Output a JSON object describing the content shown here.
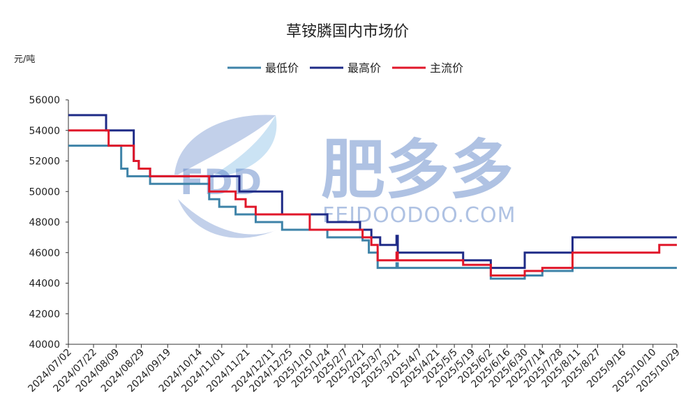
{
  "chart_data": {
    "type": "line",
    "title": "草铵膦国内市场价",
    "unit_label": "元/吨",
    "ylim": [
      40000,
      56000
    ],
    "yticks": [
      40000,
      42000,
      44000,
      46000,
      48000,
      50000,
      52000,
      54000,
      56000
    ],
    "xlim": [
      "2024-07-02",
      "2025-10-29"
    ],
    "xtick_labels": [
      "2024/07/02",
      "2024/07/22",
      "2024/08/09",
      "2024/08/29",
      "2024/09/19",
      "2024/10/14",
      "2024/11/01",
      "2024/11/21",
      "2024/12/11",
      "2024/12/25",
      "2025/1/10",
      "2025/1/24",
      "2025/2/7",
      "2025/2/21",
      "2025/3/7",
      "2025/3/21",
      "2025/4/7",
      "2025/4/21",
      "2025/5/5",
      "2025/5/19",
      "2025/6/2",
      "2025/6/16",
      "2025/6/30",
      "2025/7/14",
      "2025/7/28",
      "2025/8/11",
      "2025/8/27",
      "2025/9/16",
      "2025/10/10",
      "2025/10/29"
    ],
    "xtick_dates": [
      "2024-07-02",
      "2024-07-22",
      "2024-08-09",
      "2024-08-29",
      "2024-09-19",
      "2024-10-14",
      "2024-11-01",
      "2024-11-21",
      "2024-12-11",
      "2024-12-25",
      "2025-01-10",
      "2025-01-24",
      "2025-02-07",
      "2025-02-21",
      "2025-03-07",
      "2025-03-21",
      "2025-04-07",
      "2025-04-21",
      "2025-05-05",
      "2025-05-19",
      "2025-06-02",
      "2025-06-16",
      "2025-06-30",
      "2025-07-14",
      "2025-07-28",
      "2025-08-11",
      "2025-08-27",
      "2025-09-16",
      "2025-10-10",
      "2025-10-29"
    ],
    "legend_position": "top-center",
    "grid": false,
    "series": [
      {
        "name": "最低价",
        "color": "#3e83a8",
        "points": [
          [
            "2024-07-02",
            53000
          ],
          [
            "2024-08-03",
            53000
          ],
          [
            "2024-08-03",
            53000
          ],
          [
            "2024-08-13",
            53000
          ],
          [
            "2024-08-13",
            51500
          ],
          [
            "2024-08-18",
            51500
          ],
          [
            "2024-08-18",
            51000
          ],
          [
            "2024-09-05",
            51000
          ],
          [
            "2024-09-05",
            50500
          ],
          [
            "2024-10-22",
            50500
          ],
          [
            "2024-10-22",
            49500
          ],
          [
            "2024-10-30",
            49500
          ],
          [
            "2024-10-30",
            49000
          ],
          [
            "2024-11-12",
            49000
          ],
          [
            "2024-11-12",
            48500
          ],
          [
            "2024-11-28",
            48500
          ],
          [
            "2024-11-28",
            48000
          ],
          [
            "2024-12-19",
            48000
          ],
          [
            "2024-12-19",
            47500
          ],
          [
            "2025-01-24",
            47500
          ],
          [
            "2025-01-24",
            47000
          ],
          [
            "2025-02-21",
            47000
          ],
          [
            "2025-02-21",
            46800
          ],
          [
            "2025-02-26",
            46800
          ],
          [
            "2025-02-26",
            46000
          ],
          [
            "2025-03-05",
            46000
          ],
          [
            "2025-03-05",
            45000
          ],
          [
            "2025-03-20",
            45000
          ],
          [
            "2025-03-20",
            45300
          ],
          [
            "2025-03-21",
            45300
          ],
          [
            "2025-03-21",
            45000
          ],
          [
            "2025-06-03",
            45000
          ],
          [
            "2025-06-03",
            44300
          ],
          [
            "2025-06-30",
            44300
          ],
          [
            "2025-06-30",
            44500
          ],
          [
            "2025-07-14",
            44500
          ],
          [
            "2025-07-14",
            44800
          ],
          [
            "2025-08-07",
            44800
          ],
          [
            "2025-08-07",
            45000
          ],
          [
            "2025-10-29",
            45000
          ]
        ]
      },
      {
        "name": "最高价",
        "color": "#1f2b87",
        "points": [
          [
            "2024-07-02",
            55000
          ],
          [
            "2024-08-01",
            55000
          ],
          [
            "2024-08-01",
            54000
          ],
          [
            "2024-08-23",
            54000
          ],
          [
            "2024-08-23",
            52000
          ],
          [
            "2024-08-27",
            52000
          ],
          [
            "2024-08-27",
            51500
          ],
          [
            "2024-09-05",
            51500
          ],
          [
            "2024-09-05",
            51000
          ],
          [
            "2024-11-15",
            51000
          ],
          [
            "2024-11-15",
            50000
          ],
          [
            "2024-12-19",
            50000
          ],
          [
            "2024-12-19",
            48500
          ],
          [
            "2025-01-24",
            48500
          ],
          [
            "2025-01-24",
            48000
          ],
          [
            "2025-02-19",
            48000
          ],
          [
            "2025-02-19",
            47500
          ],
          [
            "2025-02-28",
            47500
          ],
          [
            "2025-02-28",
            47000
          ],
          [
            "2025-03-07",
            47000
          ],
          [
            "2025-03-07",
            46500
          ],
          [
            "2025-03-20",
            46500
          ],
          [
            "2025-03-20",
            47100
          ],
          [
            "2025-03-21",
            47100
          ],
          [
            "2025-03-21",
            46000
          ],
          [
            "2025-05-12",
            46000
          ],
          [
            "2025-05-12",
            45500
          ],
          [
            "2025-06-03",
            45500
          ],
          [
            "2025-06-03",
            45000
          ],
          [
            "2025-06-30",
            45000
          ],
          [
            "2025-06-30",
            46000
          ],
          [
            "2025-08-07",
            46000
          ],
          [
            "2025-08-07",
            47000
          ],
          [
            "2025-10-29",
            47000
          ]
        ]
      },
      {
        "name": "主流价",
        "color": "#e0172a",
        "points": [
          [
            "2024-07-02",
            54000
          ],
          [
            "2024-08-03",
            54000
          ],
          [
            "2024-08-03",
            53000
          ],
          [
            "2024-08-23",
            53000
          ],
          [
            "2024-08-23",
            52000
          ],
          [
            "2024-08-27",
            52000
          ],
          [
            "2024-08-27",
            51500
          ],
          [
            "2024-09-05",
            51500
          ],
          [
            "2024-09-05",
            51000
          ],
          [
            "2024-10-22",
            51000
          ],
          [
            "2024-10-22",
            50000
          ],
          [
            "2024-11-12",
            50000
          ],
          [
            "2024-11-12",
            49500
          ],
          [
            "2024-11-20",
            49500
          ],
          [
            "2024-11-20",
            49000
          ],
          [
            "2024-11-28",
            49000
          ],
          [
            "2024-11-28",
            48500
          ],
          [
            "2025-01-10",
            48500
          ],
          [
            "2025-01-10",
            47500
          ],
          [
            "2025-02-21",
            47500
          ],
          [
            "2025-02-21",
            47000
          ],
          [
            "2025-02-28",
            47000
          ],
          [
            "2025-02-28",
            46500
          ],
          [
            "2025-03-05",
            46500
          ],
          [
            "2025-03-05",
            45500
          ],
          [
            "2025-03-20",
            45500
          ],
          [
            "2025-03-20",
            46000
          ],
          [
            "2025-03-21",
            46000
          ],
          [
            "2025-03-21",
            45500
          ],
          [
            "2025-05-12",
            45500
          ],
          [
            "2025-05-12",
            45200
          ],
          [
            "2025-06-03",
            45200
          ],
          [
            "2025-06-03",
            44500
          ],
          [
            "2025-06-30",
            44500
          ],
          [
            "2025-06-30",
            44800
          ],
          [
            "2025-07-14",
            44800
          ],
          [
            "2025-07-14",
            45000
          ],
          [
            "2025-08-07",
            45000
          ],
          [
            "2025-08-07",
            46000
          ],
          [
            "2025-10-15",
            46000
          ],
          [
            "2025-10-15",
            46500
          ],
          [
            "2025-10-29",
            46500
          ]
        ]
      }
    ]
  },
  "watermark": {
    "logo_text": "FDD",
    "brand_text": "肥多多",
    "domain_text": "FEIDOODOO.COM"
  }
}
